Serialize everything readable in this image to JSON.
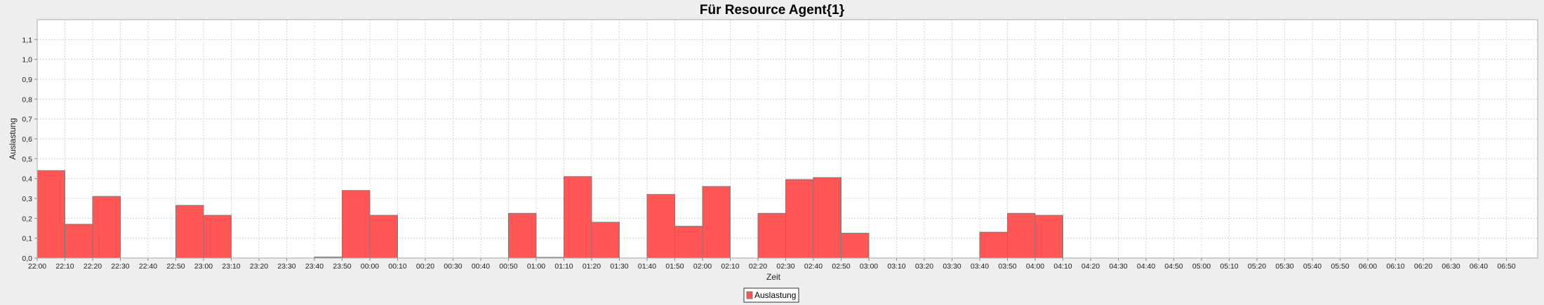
{
  "chart_data": {
    "type": "bar",
    "title": "Für Resource Agent{1}",
    "xlabel": "Zeit",
    "ylabel": "Auslastung",
    "ylim": [
      0,
      1.2
    ],
    "yticks": [
      "0,0",
      "0,1",
      "0,2",
      "0,3",
      "0,4",
      "0,5",
      "0,6",
      "0,7",
      "0,8",
      "0,9",
      "1,0",
      "1,1"
    ],
    "grid": true,
    "legend_position": "bottom-center",
    "colors": {
      "bar": "#ff5555",
      "bar_edge": "#7a7a7a",
      "plot_bg": "#ffffff",
      "page_bg": "#eeeeee",
      "grid": "#d4d4d4"
    },
    "categories": [
      "22:00",
      "22:10",
      "22:20",
      "22:30",
      "22:40",
      "22:50",
      "23:00",
      "23:10",
      "23:20",
      "23:30",
      "23:40",
      "23:50",
      "00:00",
      "00:10",
      "00:20",
      "00:30",
      "00:40",
      "00:50",
      "01:00",
      "01:10",
      "01:20",
      "01:30",
      "01:40",
      "01:50",
      "02:00",
      "02:10",
      "02:20",
      "02:30",
      "02:40",
      "02:50",
      "03:00",
      "03:10",
      "03:20",
      "03:30",
      "03:40",
      "03:50",
      "04:00",
      "04:10",
      "04:20",
      "04:30",
      "04:40",
      "04:50",
      "05:00",
      "05:10",
      "05:20",
      "05:30",
      "05:40",
      "05:50",
      "06:00",
      "06:10",
      "06:20",
      "06:30",
      "06:40",
      "06:50"
    ],
    "series": [
      {
        "name": "Auslastung",
        "values": [
          0.44,
          0.17,
          0.31,
          0,
          0,
          0.265,
          0.215,
          0,
          0,
          0,
          0.005,
          0.34,
          0.215,
          0,
          0,
          0,
          0,
          0.225,
          0.003,
          0.41,
          0.18,
          0,
          0.32,
          0.16,
          0.36,
          0,
          0.225,
          0.395,
          0.405,
          0.125,
          0,
          0,
          0,
          0,
          0.13,
          0.225,
          0.215,
          0,
          0,
          0,
          0,
          0,
          0,
          0,
          0,
          0,
          0,
          0,
          0,
          0,
          0,
          0,
          0,
          0
        ]
      }
    ]
  }
}
